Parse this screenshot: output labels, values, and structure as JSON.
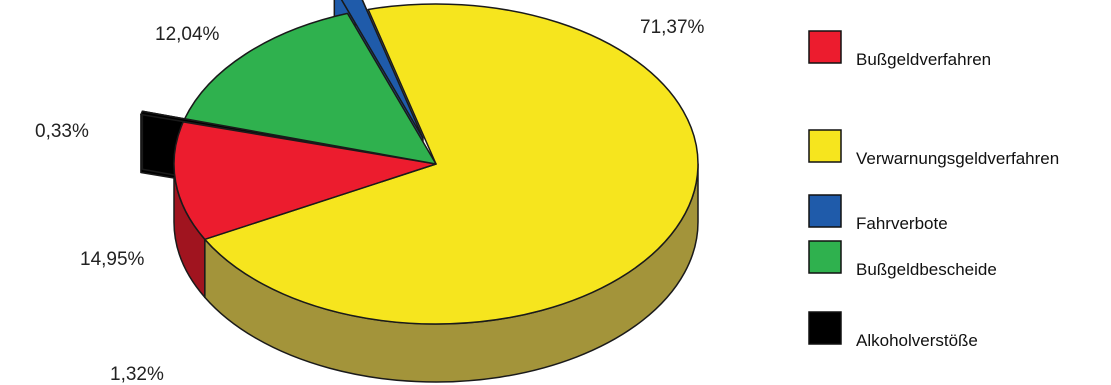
{
  "chart_data": {
    "type": "pie",
    "three_d": true,
    "legend_position": "right",
    "slices": [
      {
        "label": "Verwarnungsgeldverfahren",
        "value": 71.37,
        "value_label": "71,37%",
        "color": "#F6E51E",
        "side_color": "#A3943A",
        "exploded": false
      },
      {
        "label": "Bußgeldverfahren",
        "value": 12.04,
        "value_label": "12,04%",
        "color": "#EC1C2E",
        "side_color": "#A0141F",
        "exploded": false
      },
      {
        "label": "Alkoholverstöße",
        "value": 0.33,
        "value_label": "0,33%",
        "color": "#000000",
        "side_color": "#000000",
        "exploded": true
      },
      {
        "label": "Bußgeldbescheide",
        "value": 14.95,
        "value_label": "14,95%",
        "color": "#2FB14E",
        "side_color": "#068F46",
        "exploded": false
      },
      {
        "label": "Fahrverbote",
        "value": 1.32,
        "value_label": "1,32%",
        "color": "#1F5BAA",
        "side_color": "#1F5BAA",
        "exploded": true
      }
    ],
    "legend": [
      {
        "label": "Bußgeldverfahren",
        "color": "#EC1C2E"
      },
      {
        "label": "Verwarnungsgeldverfahren",
        "color": "#F6E51E"
      },
      {
        "label": "Fahrverbote",
        "color": "#1F5BAA"
      },
      {
        "label": "Bußgeldbescheide",
        "color": "#2FB14E"
      },
      {
        "label": "Alkoholverstöße",
        "color": "#000000"
      }
    ]
  }
}
